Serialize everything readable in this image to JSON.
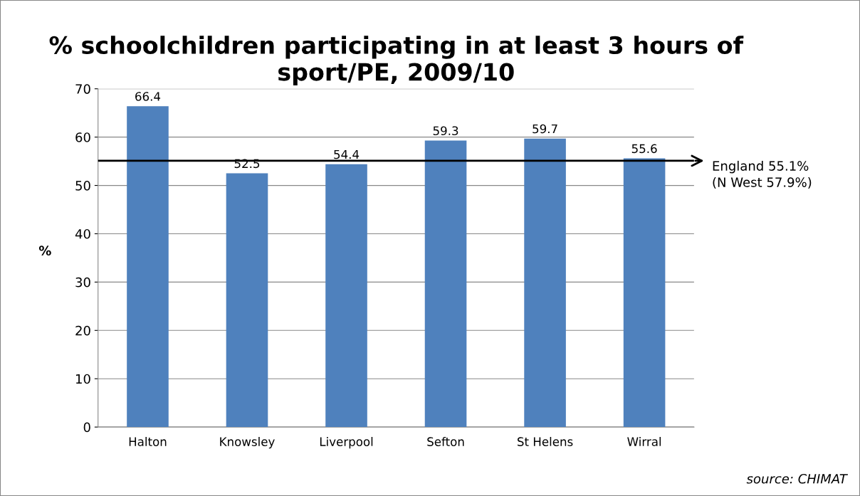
{
  "chart_data": {
    "type": "bar",
    "title": "% schoolchildren participating in at least 3 hours of sport/PE, 2009/10",
    "ylabel": "%",
    "categories": [
      "Halton",
      "Knowsley",
      "Liverpool",
      "Sefton",
      "St Helens",
      "Wirral"
    ],
    "values": [
      66.4,
      52.5,
      54.4,
      59.3,
      59.7,
      55.6
    ],
    "color": "#4f81bd",
    "data_labels": true,
    "ylim": [
      0,
      70
    ],
    "yticks": [
      0,
      10,
      20,
      30,
      40,
      50,
      60,
      70
    ],
    "grid": "y",
    "ref_lines": [
      {
        "axis": "y",
        "value": 55.1,
        "label": "England 55.1%\n(N West 57.9%)",
        "color": "#000000"
      }
    ],
    "annotations": [
      "source: CHIMAT"
    ]
  }
}
